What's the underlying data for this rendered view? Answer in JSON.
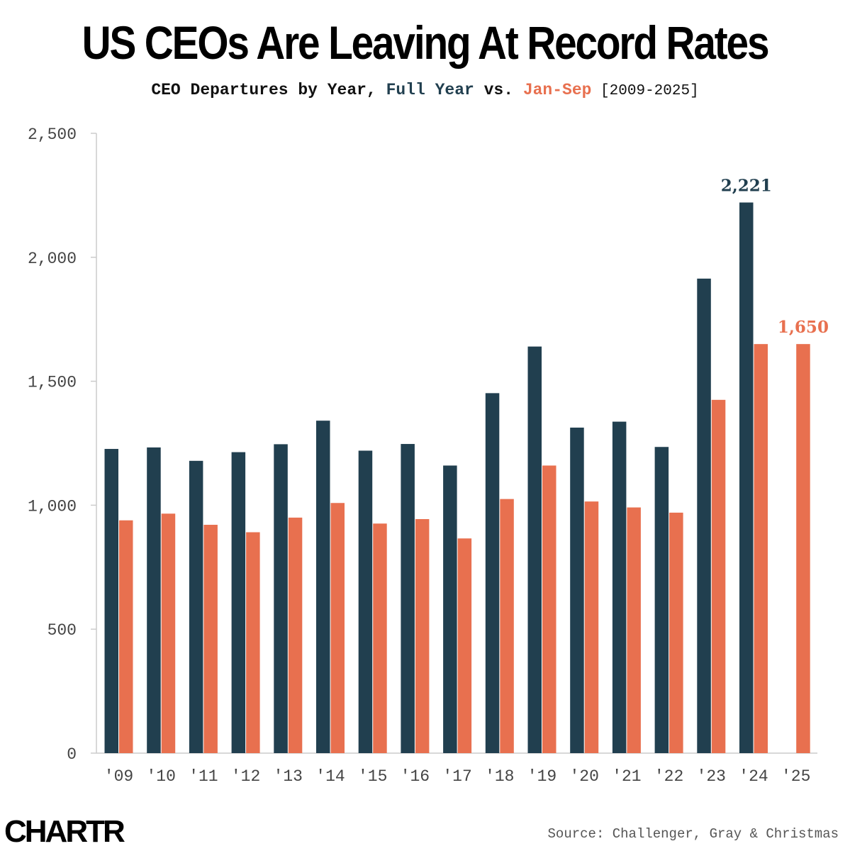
{
  "title": "US CEOs Are Leaving At Record Rates",
  "subtitle": {
    "prefix": "CEO Departures by Year, ",
    "full_label": "Full Year",
    "vs": " vs. ",
    "jan_label": "Jan-Sep",
    "range": " [2009-2025]"
  },
  "logo": "CHARTR",
  "source": "Source: Challenger, Gray & Christmas",
  "colors": {
    "full_year": "#213f4f",
    "jan_sep": "#e8704f",
    "axis": "#cccccc",
    "tick_text": "#444444"
  },
  "chart_data": {
    "type": "bar",
    "categories": [
      "'09",
      "'10",
      "'11",
      "'12",
      "'13",
      "'14",
      "'15",
      "'16",
      "'17",
      "'18",
      "'19",
      "'20",
      "'21",
      "'22",
      "'23",
      "'24",
      "'25"
    ],
    "series": [
      {
        "name": "Full Year",
        "values": [
          1227,
          1233,
          1179,
          1214,
          1246,
          1341,
          1220,
          1247,
          1160,
          1452,
          1640,
          1313,
          1337,
          1235,
          1914,
          2221,
          null
        ]
      },
      {
        "name": "Jan-Sep",
        "values": [
          939,
          966,
          921,
          891,
          950,
          1009,
          926,
          944,
          866,
          1025,
          1160,
          1015,
          991,
          970,
          1425,
          1650,
          1650
        ]
      }
    ],
    "ylim": [
      0,
      2500
    ],
    "yticks": [
      0,
      500,
      1000,
      1500,
      2000,
      2500
    ],
    "ytick_labels": [
      "0",
      "500",
      "1,000",
      "1,500",
      "2,000",
      "2,500"
    ],
    "annotations": [
      {
        "series": "Full Year",
        "category": "'24",
        "text": "2,221"
      },
      {
        "series": "Jan-Sep",
        "category": "'25",
        "text": "1,650"
      }
    ],
    "xlabel": "",
    "ylabel": "",
    "grid": false
  }
}
